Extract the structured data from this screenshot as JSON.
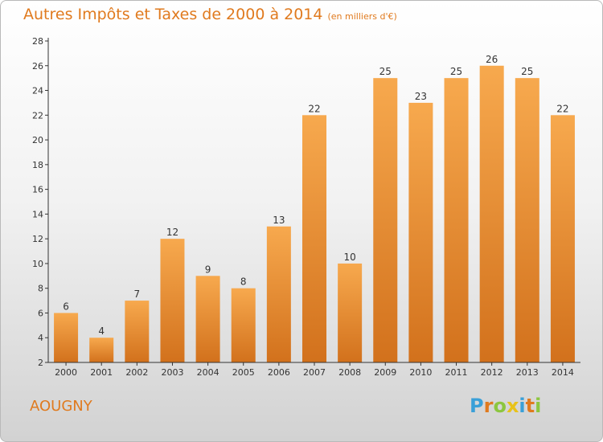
{
  "chart_data": {
    "type": "bar",
    "title": "Autres Impôts et Taxes de 2000 à 2014",
    "subtitle": "(en milliers d'€)",
    "categories": [
      "2000",
      "2001",
      "2002",
      "2003",
      "2004",
      "2005",
      "2006",
      "2007",
      "2008",
      "2009",
      "2010",
      "2011",
      "2012",
      "2013",
      "2014"
    ],
    "values": [
      6,
      4,
      7,
      12,
      9,
      8,
      13,
      22,
      10,
      25,
      23,
      25,
      26,
      25,
      22
    ],
    "ylim": [
      2,
      28
    ],
    "yticks": [
      2,
      4,
      6,
      8,
      10,
      12,
      14,
      16,
      18,
      20,
      22,
      24,
      26,
      28
    ],
    "grid": false,
    "bar_color_top": "#f7a94e",
    "bar_color_bottom": "#d2711c"
  },
  "footer": {
    "city": "AOUGNY",
    "logo_letters": [
      "P",
      "r",
      "o",
      "x",
      "i",
      "t",
      "i"
    ],
    "logo_colors": [
      "#3aa0d8",
      "#e07a1e",
      "#8cc63f",
      "#e8c21a",
      "#3aa0d8",
      "#e07a1e",
      "#8cc63f"
    ]
  }
}
